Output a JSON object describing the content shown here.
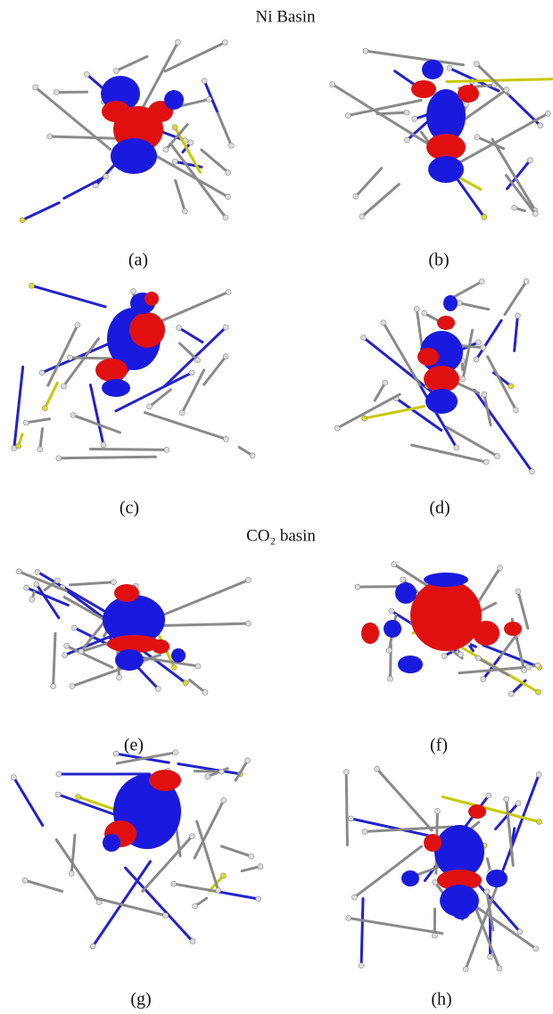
{
  "figure": {
    "sections": [
      {
        "title": "Ni Basin",
        "panels": [
          "(a)",
          "(b)",
          "(c)",
          "(d)"
        ]
      },
      {
        "title": "CO₂ basin",
        "panels": [
          "(e)",
          "(f)",
          "(g)",
          "(h)"
        ]
      }
    ]
  }
}
